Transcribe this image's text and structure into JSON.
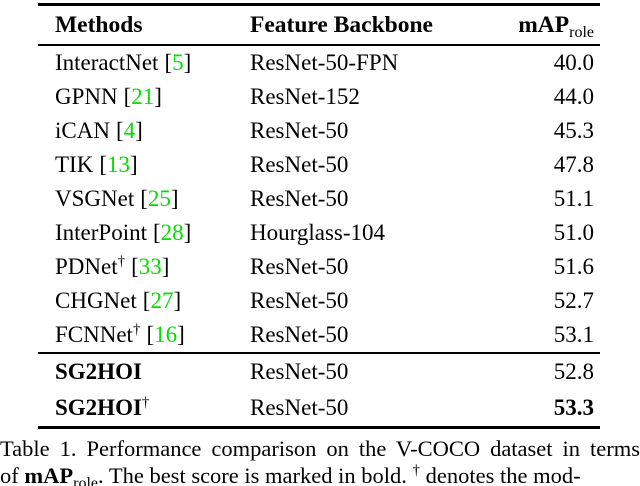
{
  "colors": {
    "citation_green": "#00e000",
    "text": "#000000",
    "background": "#ffffff"
  },
  "symbols": {
    "bracket_open": "[",
    "bracket_close": "]",
    "dagger": "†"
  },
  "table": {
    "header": {
      "methods": "Methods",
      "backbone": "Feature Backbone",
      "map_main": "mAP",
      "map_sub": "role"
    },
    "rows": [
      {
        "method": "InteractNet",
        "dagger": "",
        "cite": "5",
        "backbone": "ResNet-50-FPN",
        "map": "40.0"
      },
      {
        "method": "GPNN",
        "dagger": "",
        "cite": "21",
        "backbone": "ResNet-152",
        "map": "44.0"
      },
      {
        "method": "iCAN",
        "dagger": "",
        "cite": "4",
        "backbone": "ResNet-50",
        "map": "45.3"
      },
      {
        "method": "TIK",
        "dagger": "",
        "cite": "13",
        "backbone": "ResNet-50",
        "map": "47.8"
      },
      {
        "method": "VSGNet",
        "dagger": "",
        "cite": "25",
        "backbone": "ResNet-50",
        "map": "51.1"
      },
      {
        "method": "InterPoint",
        "dagger": "",
        "cite": "28",
        "backbone": "Hourglass-104",
        "map": "51.0"
      },
      {
        "method": "PDNet",
        "dagger": "†",
        "cite": "33",
        "backbone": "ResNet-50",
        "map": "51.6"
      },
      {
        "method": "CHGNet",
        "dagger": "",
        "cite": "27",
        "backbone": "ResNet-50",
        "map": "52.7"
      },
      {
        "method": "FCNNet",
        "dagger": "†",
        "cite": "16",
        "backbone": "ResNet-50",
        "map": "53.1"
      }
    ],
    "ours_rows": [
      {
        "method": "SG2HOI",
        "dagger": "",
        "backbone": "ResNet-50",
        "map": "52.8"
      },
      {
        "method": "SG2HOI",
        "dagger": "†",
        "backbone": "ResNet-50",
        "map": "53.3"
      }
    ]
  },
  "caption": {
    "line1": "Table 1. Performance comparison on the V-COCO dataset in terms",
    "line2_prefix": "of ",
    "line2_bold": "mAP",
    "line2_sub": "role",
    "line2_mid": ". The best score is marked in bold. ",
    "line2_dagger": "†",
    "line2_suffix": " denotes the mod-"
  }
}
